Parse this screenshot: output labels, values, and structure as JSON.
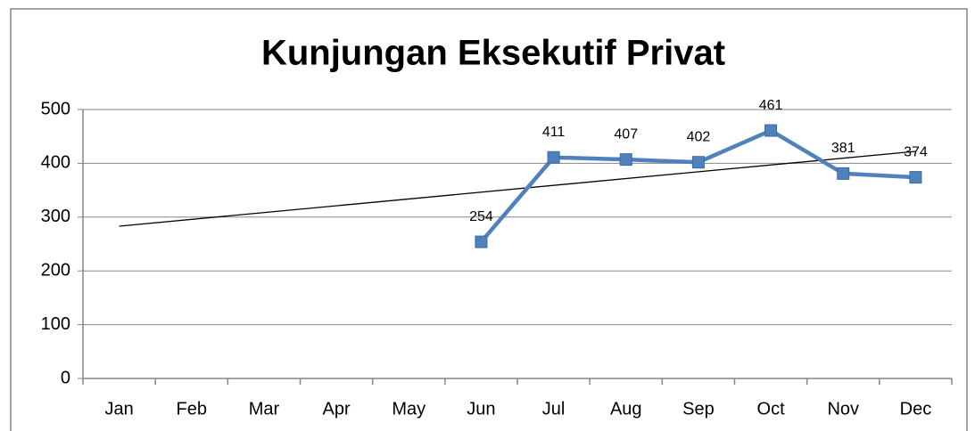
{
  "chart_data": {
    "type": "line",
    "title": "Kunjungan Eksekutif Privat",
    "categories": [
      "Jan",
      "Feb",
      "Mar",
      "Apr",
      "May",
      "Jun",
      "Jul",
      "Aug",
      "Sep",
      "Oct",
      "Nov",
      "Dec"
    ],
    "series": [
      {
        "name": "Kunjungan Eksekutif Privat",
        "color": "#4f81bd",
        "values": [
          null,
          null,
          null,
          null,
          null,
          254,
          411,
          407,
          402,
          461,
          381,
          374
        ]
      }
    ],
    "ylim": [
      0,
      500
    ],
    "yticks": [
      0,
      100,
      200,
      300,
      400,
      500
    ],
    "grid": true,
    "trendline": "linear"
  }
}
